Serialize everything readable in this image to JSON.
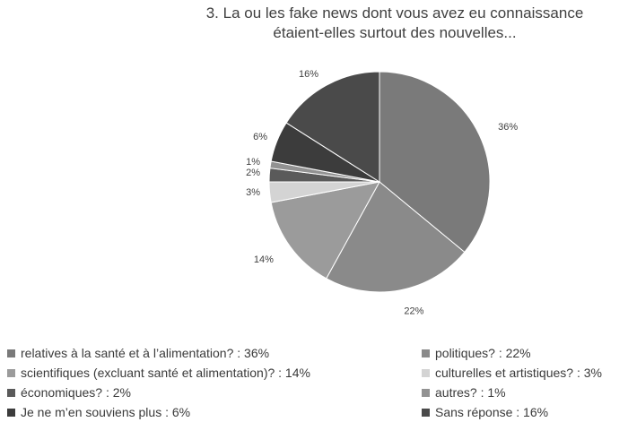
{
  "chart_data": {
    "type": "pie",
    "title": [
      "3. La ou les fake news dont vous avez eu connaissance",
      "étaient-elles surtout des nouvelles..."
    ],
    "legend_position": "bottom",
    "slices": [
      {
        "legend": "relatives à la santé et à l’alimentation? : 36%",
        "label": "36%",
        "value": 36,
        "color": "#7a7a7a"
      },
      {
        "legend": "politiques? : 22%",
        "label": "22%",
        "value": 22,
        "color": "#8a8a8a"
      },
      {
        "legend": "scientifiques (excluant santé et alimentation)? : 14%",
        "label": "14%",
        "value": 14,
        "color": "#9b9b9b"
      },
      {
        "legend": "culturelles et artistiques? : 3%",
        "label": "3%",
        "value": 3,
        "color": "#d4d4d4"
      },
      {
        "legend": "économiques? : 2%",
        "label": "2%",
        "value": 2,
        "color": "#5a5a5a"
      },
      {
        "legend": "autres? : 1%",
        "label": "1%",
        "value": 1,
        "color": "#929292"
      },
      {
        "legend": "Je ne m’en souviens plus : 6%",
        "label": "6%",
        "value": 6,
        "color": "#3c3c3c"
      },
      {
        "legend": "Sans réponse : 16%",
        "label": "16%",
        "value": 16,
        "color": "#4a4a4a"
      }
    ]
  }
}
